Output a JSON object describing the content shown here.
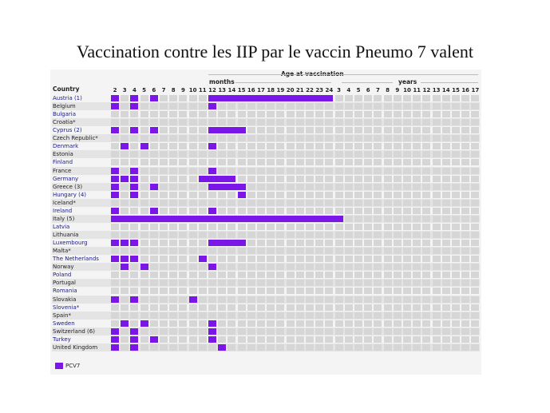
{
  "title": "Vaccination contre les IIP par le vaccin Pneumo 7 valent",
  "header": {
    "age_label": "Age at vaccination",
    "months_label": "months",
    "years_label": "years",
    "country_label": "Country"
  },
  "legend": {
    "label": "PCV7",
    "color": "#7b16e8"
  },
  "colors": {
    "bar": "#7b16e8",
    "cell": "#d6d6d6",
    "row_alt": "#e4e4e4",
    "country_text": "#1a1a8c",
    "country_text_dark": "#222222"
  },
  "chart_data": {
    "type": "table",
    "title": "Vaccination contre les IIP par le vaccin Pneumo 7 valent",
    "columns": [
      {
        "unit": "months",
        "label": "2"
      },
      {
        "unit": "months",
        "label": "3"
      },
      {
        "unit": "months",
        "label": "4"
      },
      {
        "unit": "months",
        "label": "5"
      },
      {
        "unit": "months",
        "label": "6"
      },
      {
        "unit": "months",
        "label": "7"
      },
      {
        "unit": "months",
        "label": "8"
      },
      {
        "unit": "months",
        "label": "9"
      },
      {
        "unit": "months",
        "label": "10"
      },
      {
        "unit": "months",
        "label": "11"
      },
      {
        "unit": "months",
        "label": "12"
      },
      {
        "unit": "months",
        "label": "13"
      },
      {
        "unit": "months",
        "label": "14"
      },
      {
        "unit": "months",
        "label": "15"
      },
      {
        "unit": "months",
        "label": "16"
      },
      {
        "unit": "months",
        "label": "17"
      },
      {
        "unit": "months",
        "label": "18"
      },
      {
        "unit": "months",
        "label": "19"
      },
      {
        "unit": "months",
        "label": "20"
      },
      {
        "unit": "months",
        "label": "21"
      },
      {
        "unit": "months",
        "label": "22"
      },
      {
        "unit": "months",
        "label": "23"
      },
      {
        "unit": "months",
        "label": "24"
      },
      {
        "unit": "years",
        "label": "3"
      },
      {
        "unit": "years",
        "label": "4"
      },
      {
        "unit": "years",
        "label": "5"
      },
      {
        "unit": "years",
        "label": "6"
      },
      {
        "unit": "years",
        "label": "7"
      },
      {
        "unit": "years",
        "label": "8"
      },
      {
        "unit": "years",
        "label": "9"
      },
      {
        "unit": "years",
        "label": "10"
      },
      {
        "unit": "years",
        "label": "11"
      },
      {
        "unit": "years",
        "label": "12"
      },
      {
        "unit": "years",
        "label": "13"
      },
      {
        "unit": "years",
        "label": "14"
      },
      {
        "unit": "years",
        "label": "15"
      },
      {
        "unit": "years",
        "label": "16"
      },
      {
        "unit": "years",
        "label": "17"
      }
    ],
    "rows": [
      {
        "country": "Austria (1)",
        "linked": true,
        "doses": [
          [
            0,
            0
          ],
          [
            2,
            2
          ],
          [
            4,
            4
          ],
          [
            10,
            22
          ]
        ]
      },
      {
        "country": "Belgium",
        "linked": false,
        "doses": [
          [
            0,
            0
          ],
          [
            2,
            2
          ],
          [
            10,
            10
          ]
        ]
      },
      {
        "country": "Bulgaria",
        "linked": true,
        "doses": []
      },
      {
        "country": "Croatia*",
        "linked": false,
        "doses": []
      },
      {
        "country": "Cyprus (2)",
        "linked": true,
        "doses": [
          [
            0,
            0
          ],
          [
            2,
            2
          ],
          [
            4,
            4
          ],
          [
            10,
            13
          ]
        ]
      },
      {
        "country": "Czech Republic*",
        "linked": false,
        "doses": []
      },
      {
        "country": "Denmark",
        "linked": true,
        "doses": [
          [
            1,
            1
          ],
          [
            3,
            3
          ],
          [
            10,
            10
          ]
        ]
      },
      {
        "country": "Estonia",
        "linked": false,
        "doses": []
      },
      {
        "country": "Finland",
        "linked": true,
        "doses": []
      },
      {
        "country": "France",
        "linked": false,
        "doses": [
          [
            0,
            0
          ],
          [
            2,
            2
          ],
          [
            10,
            10
          ]
        ]
      },
      {
        "country": "Germany",
        "linked": true,
        "doses": [
          [
            0,
            0
          ],
          [
            1,
            1
          ],
          [
            2,
            2
          ],
          [
            9,
            12
          ]
        ]
      },
      {
        "country": "Greece (3)",
        "linked": false,
        "doses": [
          [
            0,
            0
          ],
          [
            2,
            2
          ],
          [
            4,
            4
          ],
          [
            10,
            13
          ]
        ]
      },
      {
        "country": "Hungary (4)",
        "linked": true,
        "doses": [
          [
            0,
            0
          ],
          [
            2,
            2
          ],
          [
            13,
            13
          ]
        ]
      },
      {
        "country": "Iceland*",
        "linked": false,
        "doses": []
      },
      {
        "country": "Ireland",
        "linked": true,
        "doses": [
          [
            0,
            0
          ],
          [
            4,
            4
          ],
          [
            10,
            10
          ]
        ]
      },
      {
        "country": "Italy (5)",
        "linked": false,
        "doses": [
          [
            0,
            23
          ]
        ]
      },
      {
        "country": "Latvia",
        "linked": true,
        "doses": []
      },
      {
        "country": "Lithuania",
        "linked": false,
        "doses": []
      },
      {
        "country": "Luxembourg",
        "linked": true,
        "doses": [
          [
            0,
            0
          ],
          [
            1,
            1
          ],
          [
            2,
            2
          ],
          [
            10,
            13
          ]
        ]
      },
      {
        "country": "Malta*",
        "linked": false,
        "doses": []
      },
      {
        "country": "The Netherlands",
        "linked": true,
        "doses": [
          [
            0,
            0
          ],
          [
            1,
            1
          ],
          [
            2,
            2
          ],
          [
            9,
            9
          ]
        ]
      },
      {
        "country": "Norway",
        "linked": false,
        "doses": [
          [
            1,
            1
          ],
          [
            3,
            3
          ],
          [
            10,
            10
          ]
        ]
      },
      {
        "country": "Poland",
        "linked": true,
        "doses": []
      },
      {
        "country": "Portugal",
        "linked": false,
        "doses": []
      },
      {
        "country": "Romania",
        "linked": true,
        "doses": []
      },
      {
        "country": "Slovakia",
        "linked": false,
        "doses": [
          [
            0,
            0
          ],
          [
            2,
            2
          ],
          [
            8,
            8
          ]
        ]
      },
      {
        "country": "Slovenia*",
        "linked": true,
        "doses": []
      },
      {
        "country": "Spain*",
        "linked": false,
        "doses": []
      },
      {
        "country": "Sweden",
        "linked": true,
        "doses": [
          [
            1,
            1
          ],
          [
            3,
            3
          ],
          [
            10,
            10
          ]
        ]
      },
      {
        "country": "Switzerland (6)",
        "linked": false,
        "doses": [
          [
            0,
            0
          ],
          [
            2,
            2
          ],
          [
            10,
            10
          ]
        ]
      },
      {
        "country": "Turkey",
        "linked": true,
        "doses": [
          [
            0,
            0
          ],
          [
            2,
            2
          ],
          [
            4,
            4
          ],
          [
            10,
            10
          ]
        ]
      },
      {
        "country": "United Kingdom",
        "linked": false,
        "doses": [
          [
            0,
            0
          ],
          [
            2,
            2
          ],
          [
            11,
            11
          ]
        ]
      }
    ],
    "legend": [
      "PCV7"
    ]
  }
}
